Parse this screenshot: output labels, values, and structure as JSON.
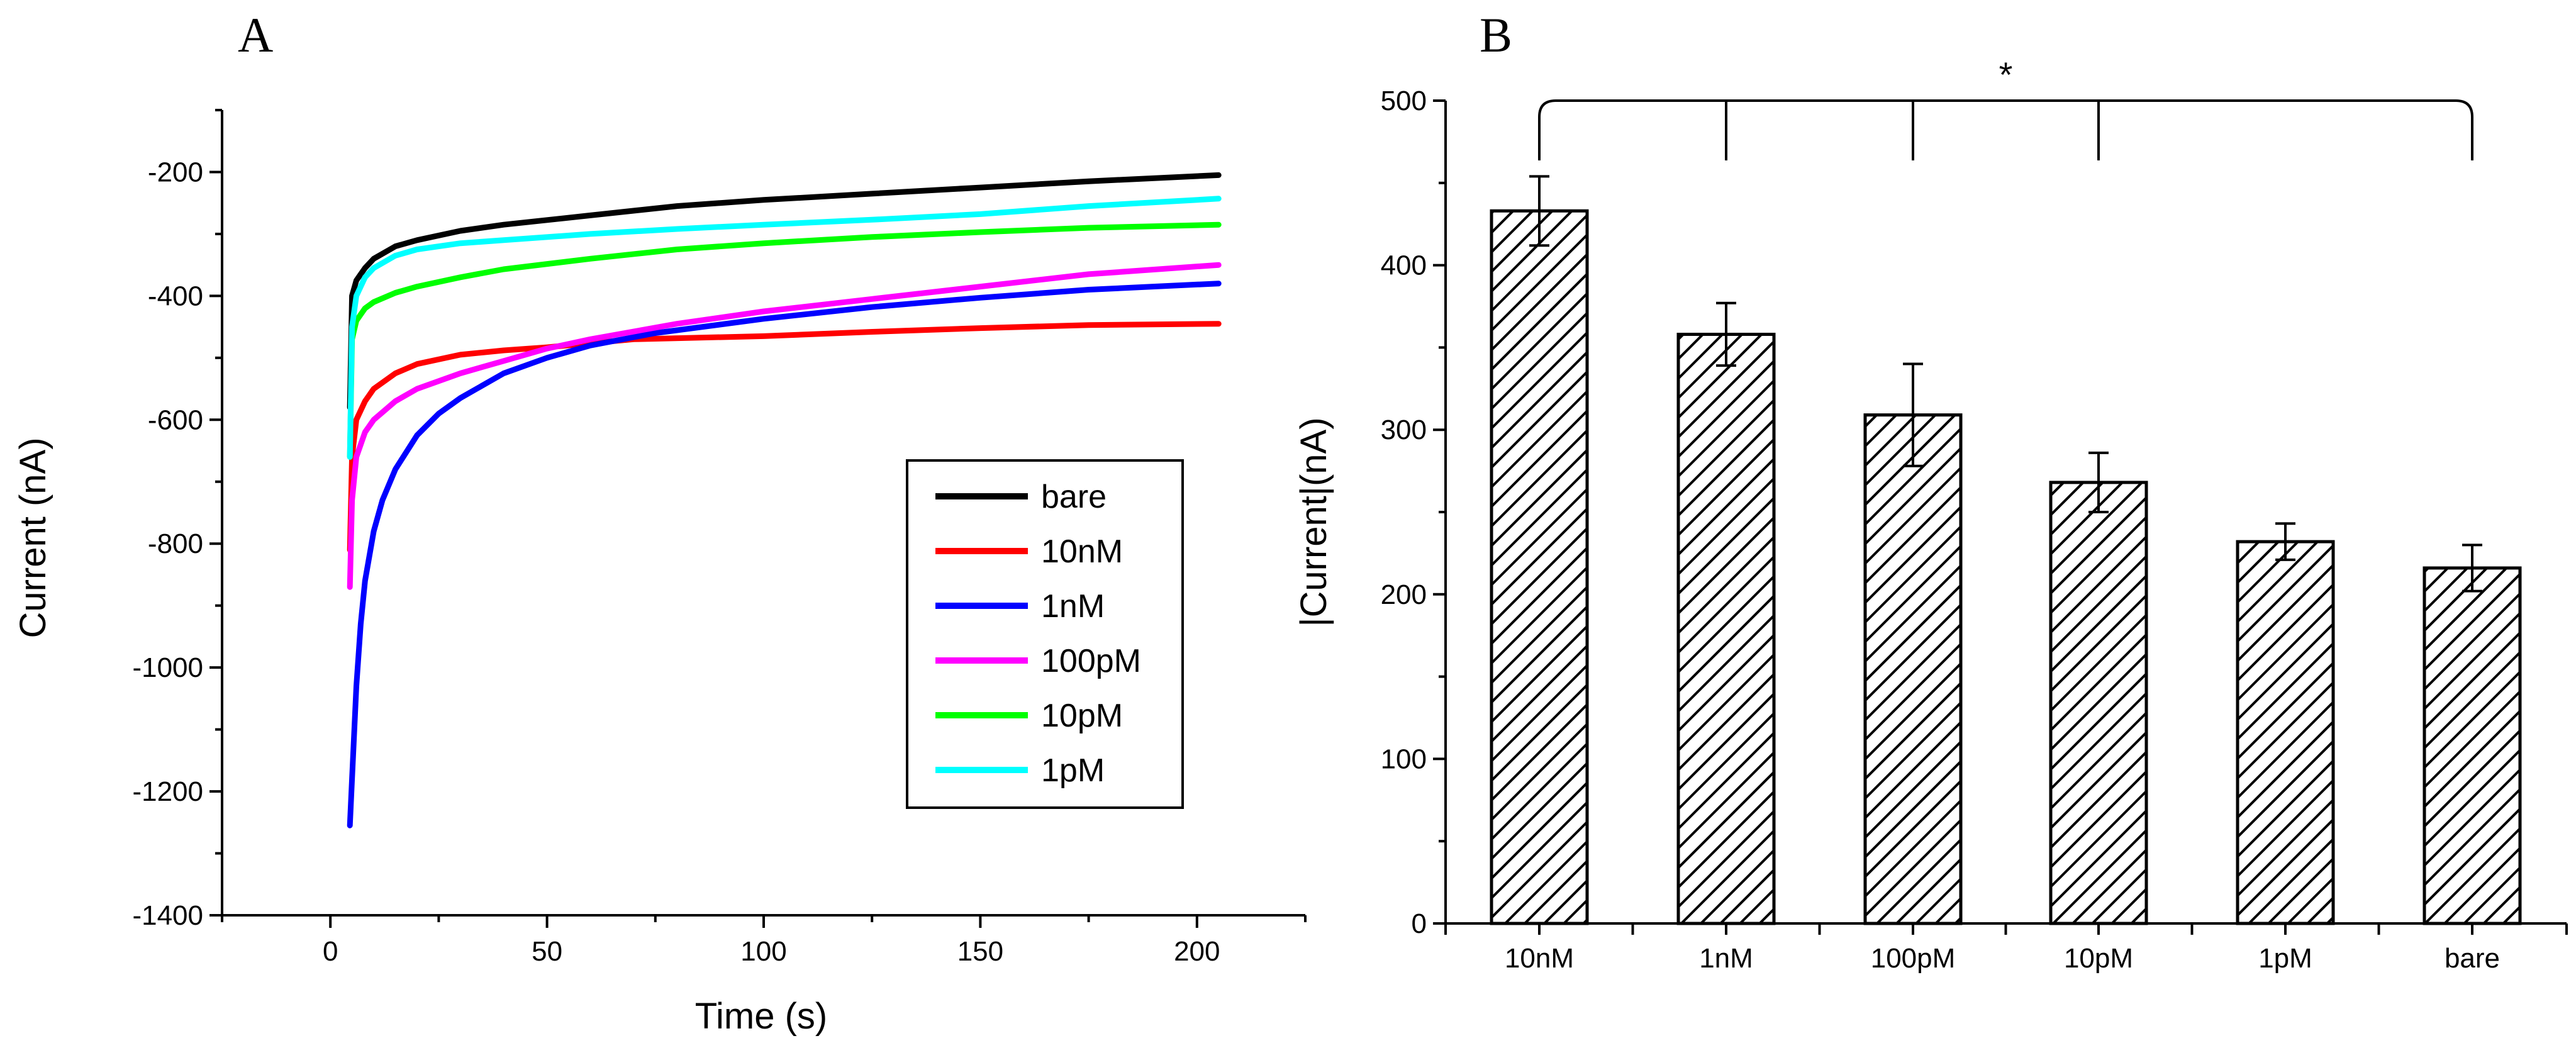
{
  "chart_data": [
    {
      "type": "line",
      "panel": "A",
      "xlabel": "Time (s)",
      "ylabel": "Current (nA)",
      "xlim": [
        -25,
        225
      ],
      "ylim": [
        -1400,
        -100
      ],
      "xticks": [
        0,
        50,
        100,
        150,
        200
      ],
      "yticks": [
        -1400,
        -1200,
        -1000,
        -800,
        -600,
        -400,
        -200
      ],
      "grid": false,
      "legend_position": "lower-right",
      "series": [
        {
          "name": "bare",
          "color": "#000000",
          "x": [
            4.5,
            5,
            6,
            8,
            10,
            15,
            20,
            30,
            40,
            60,
            80,
            100,
            125,
            150,
            175,
            205
          ],
          "y": [
            -580,
            -400,
            -375,
            -355,
            -340,
            -320,
            -310,
            -295,
            -285,
            -270,
            -255,
            -245,
            -235,
            -225,
            -215,
            -205
          ]
        },
        {
          "name": "10nM",
          "color": "#ff0000",
          "x": [
            4.5,
            5,
            6,
            8,
            10,
            15,
            20,
            30,
            40,
            50,
            70,
            100,
            125,
            150,
            175,
            205
          ],
          "y": [
            -810,
            -660,
            -600,
            -570,
            -550,
            -525,
            -510,
            -495,
            -488,
            -483,
            -470,
            -465,
            -458,
            -452,
            -447,
            -445
          ]
        },
        {
          "name": "1nM",
          "color": "#0000ff",
          "x": [
            4.5,
            5,
            6,
            7,
            8,
            10,
            12,
            15,
            20,
            25,
            30,
            40,
            50,
            60,
            75,
            100,
            125,
            150,
            175,
            205
          ],
          "y": [
            -1255,
            -1180,
            -1030,
            -930,
            -860,
            -780,
            -730,
            -680,
            -625,
            -590,
            -565,
            -525,
            -500,
            -480,
            -460,
            -437,
            -418,
            -403,
            -390,
            -380
          ]
        },
        {
          "name": "100pM",
          "color": "#ff00ff",
          "x": [
            4.5,
            5,
            6,
            8,
            10,
            15,
            20,
            30,
            40,
            50,
            60,
            80,
            100,
            125,
            150,
            175,
            205
          ],
          "y": [
            -870,
            -730,
            -660,
            -620,
            -600,
            -570,
            -550,
            -525,
            -505,
            -485,
            -470,
            -445,
            -425,
            -405,
            -385,
            -365,
            -350
          ]
        },
        {
          "name": "10pM",
          "color": "#00ff00",
          "x": [
            4.5,
            5,
            6,
            8,
            10,
            15,
            20,
            30,
            40,
            60,
            80,
            100,
            125,
            150,
            175,
            205
          ],
          "y": [
            -660,
            -470,
            -440,
            -420,
            -410,
            -395,
            -385,
            -370,
            -357,
            -340,
            -325,
            -315,
            -305,
            -297,
            -290,
            -285
          ]
        },
        {
          "name": "1pM",
          "color": "#00ffff",
          "x": [
            4.5,
            5,
            6,
            8,
            10,
            15,
            20,
            30,
            40,
            60,
            80,
            100,
            125,
            150,
            175,
            205
          ],
          "y": [
            -660,
            -450,
            -400,
            -370,
            -355,
            -335,
            -325,
            -315,
            -310,
            -300,
            -292,
            -285,
            -277,
            -268,
            -255,
            -243
          ]
        }
      ]
    },
    {
      "type": "bar",
      "panel": "B",
      "ylabel": "|Current|(nA)",
      "xlabel": "",
      "ylim": [
        0,
        500
      ],
      "yticks": [
        0,
        100,
        200,
        300,
        400,
        500
      ],
      "categories": [
        "10nM",
        "1nM",
        "100pM",
        "10pM",
        "1pM",
        "bare"
      ],
      "values": [
        433,
        358,
        309,
        268,
        232,
        216
      ],
      "errors": [
        21,
        19,
        31,
        18,
        11,
        14
      ],
      "fill": "diagonal hatch",
      "significance_label": "*",
      "significance_bracket_categories": [
        "10nM",
        "1nM",
        "100pM",
        "10pM",
        "bare"
      ]
    }
  ]
}
